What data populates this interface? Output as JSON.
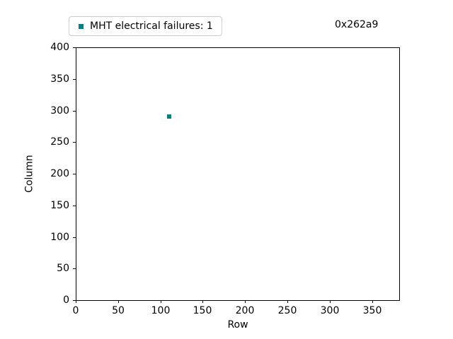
{
  "figure": {
    "annotation": "0x262a9"
  },
  "legend": {
    "label": "MHT electrical failures: 1",
    "marker_color": "#008080",
    "marker_shape": "square"
  },
  "chart_data": {
    "type": "scatter",
    "title": "",
    "xlabel": "Row",
    "ylabel": "Column",
    "xlim": [
      0,
      382
    ],
    "ylim": [
      0,
      400
    ],
    "xticks": [
      0,
      50,
      100,
      150,
      200,
      250,
      300,
      350
    ],
    "yticks": [
      0,
      50,
      100,
      150,
      200,
      250,
      300,
      350,
      400
    ],
    "grid": false,
    "legend_position": "upper-left-above-axes",
    "annotation_top_right": "0x262a9",
    "series": [
      {
        "name": "MHT electrical failures",
        "legend_label": "MHT electrical failures: 1",
        "count": 1,
        "marker": "square",
        "color": "#008080",
        "marker_size_px": 6,
        "points": [
          {
            "x": 110,
            "y": 290
          }
        ]
      }
    ]
  }
}
